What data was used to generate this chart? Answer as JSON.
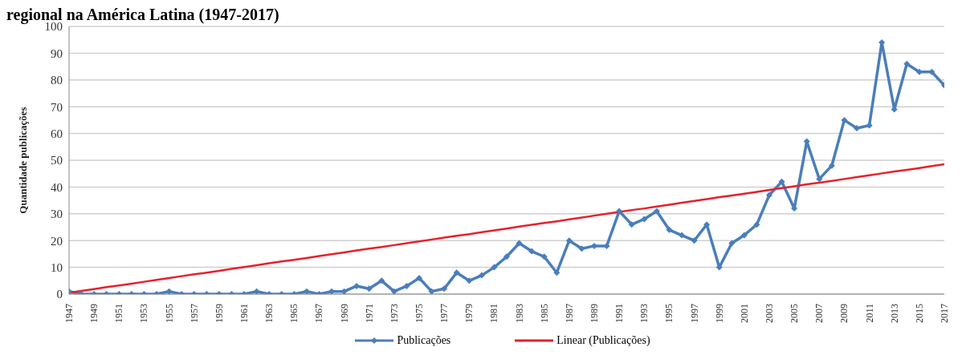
{
  "chart_data": {
    "type": "line",
    "title": "regional na América Latina (1947-2017)",
    "ylabel": "Quantidade publicações",
    "categories": [
      "1947",
      null,
      "1949",
      null,
      "1951",
      null,
      "1953",
      null,
      "1955",
      null,
      "1957",
      null,
      "1959",
      null,
      "1961",
      null,
      "1963",
      null,
      "1965",
      null,
      "1967",
      null,
      "1969",
      null,
      "1971",
      null,
      "1973",
      null,
      "1975",
      null,
      "1977",
      null,
      "1979",
      null,
      "1981",
      null,
      "1983",
      null,
      "1985",
      null,
      "1987",
      null,
      "1989",
      null,
      "1991",
      null,
      "1993",
      null,
      "1995",
      null,
      "1997",
      null,
      "1999",
      null,
      "2001",
      null,
      "2003",
      null,
      "2005",
      null,
      "2007",
      null,
      "2009",
      null,
      "2011",
      null,
      "2013",
      null,
      "2015",
      null,
      "2017"
    ],
    "series": [
      {
        "name": "Publicações",
        "color": "#4a7ebb",
        "marker": "diamond",
        "values": [
          1,
          0,
          0,
          0,
          0,
          0,
          0,
          0,
          1,
          0,
          0,
          0,
          0,
          0,
          0,
          1,
          0,
          0,
          0,
          1,
          0,
          1,
          1,
          3,
          2,
          5,
          1,
          3,
          6,
          1,
          2,
          8,
          5,
          7,
          10,
          14,
          19,
          16,
          14,
          8,
          20,
          17,
          18,
          18,
          31,
          26,
          28,
          31,
          24,
          22,
          20,
          26,
          10,
          19,
          22,
          26,
          37,
          42,
          32,
          57,
          43,
          48,
          65,
          62,
          63,
          94,
          69,
          86,
          83,
          83,
          78
        ]
      },
      {
        "name": "Linear (Publicações)",
        "type": "line",
        "color": "#e8202a",
        "marker": "none",
        "values": [
          0.5,
          1.2,
          1.9,
          2.6,
          3.2,
          3.9,
          4.6,
          5.3,
          6.0,
          6.7,
          7.4,
          8.0,
          8.7,
          9.4,
          10.1,
          10.8,
          11.5,
          12.2,
          12.8,
          13.5,
          14.2,
          14.9,
          15.6,
          16.3,
          17.0,
          17.6,
          18.3,
          19.0,
          19.7,
          20.4,
          21.1,
          21.8,
          22.4,
          23.1,
          23.8,
          24.5,
          25.2,
          25.9,
          26.6,
          27.2,
          27.9,
          28.6,
          29.3,
          30.0,
          30.7,
          31.4,
          32.0,
          32.7,
          33.4,
          34.1,
          34.8,
          35.5,
          36.2,
          36.8,
          37.5,
          38.2,
          38.9,
          39.6,
          40.3,
          41.0,
          41.6,
          42.3,
          43.0,
          43.7,
          44.4,
          45.1,
          45.8,
          46.4,
          47.1,
          47.8,
          48.5
        ]
      }
    ],
    "ylim": [
      0,
      100
    ],
    "yticks": [
      0,
      10,
      20,
      30,
      40,
      50,
      60,
      70,
      80,
      90,
      100
    ],
    "grid": "y",
    "legend": "bottom",
    "line_style": "solid"
  }
}
